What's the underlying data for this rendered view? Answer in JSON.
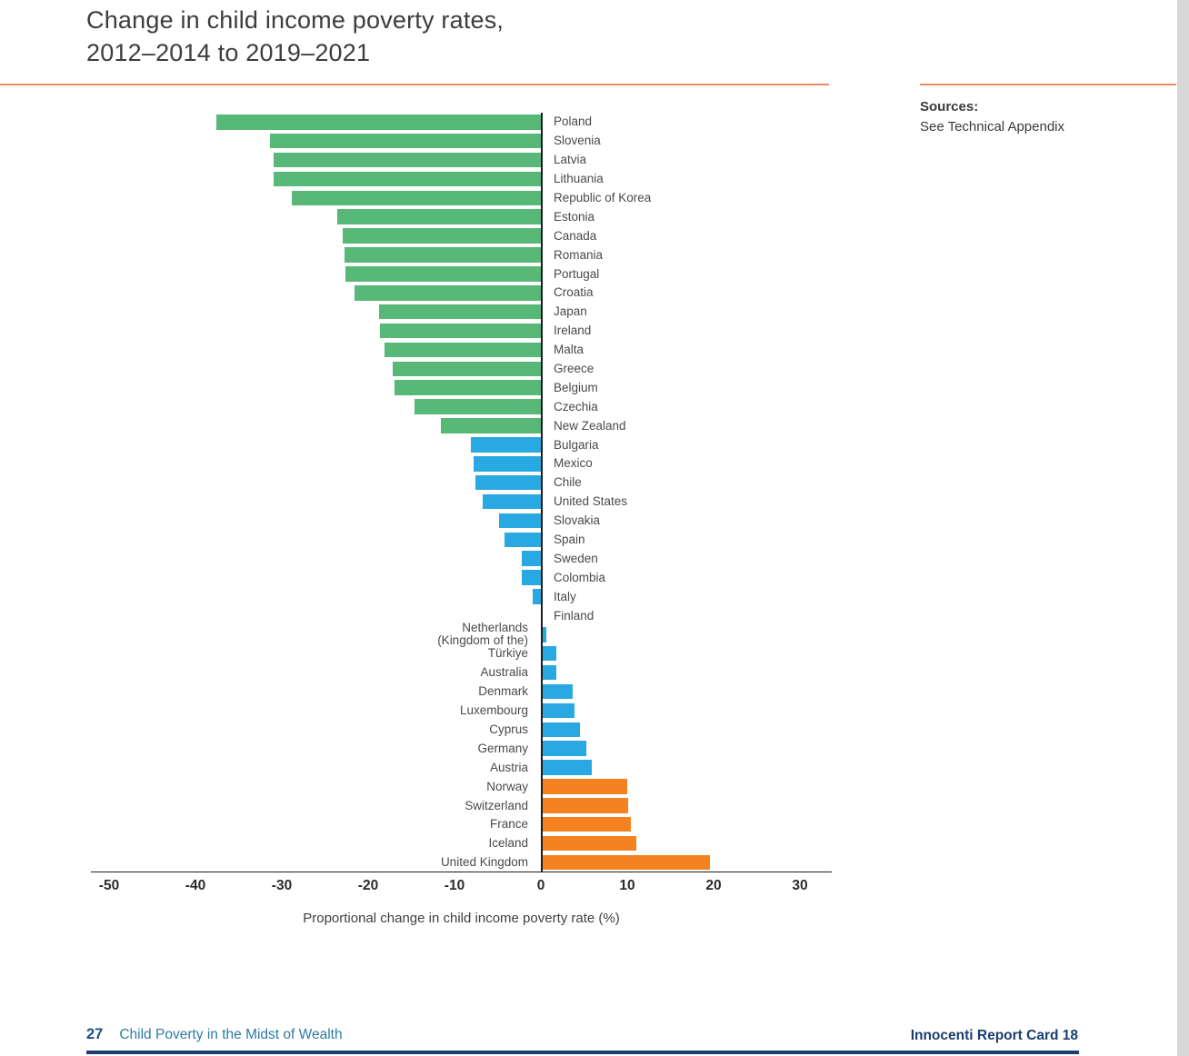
{
  "page": {
    "sources_heading": "Sources:",
    "sources_text": "See Technical Appendix",
    "footer_page_number": "27",
    "footer_left_title": "Child Poverty in the Midst of Wealth",
    "footer_right_title": "Innocenti Report Card 18"
  },
  "chart_data": {
    "type": "bar",
    "orientation": "horizontal",
    "title_lines": [
      "Change in child income poverty rates,",
      "2012–2014 to 2019–2021"
    ],
    "xlabel": "Proportional change in child income poverty rate (%)",
    "xlim": [
      -50,
      30
    ],
    "xticks": [
      -50,
      -40,
      -30,
      -20,
      -10,
      0,
      10,
      20,
      30
    ],
    "grid": false,
    "colors": {
      "green": "#57b878",
      "blue": "#29a9e1",
      "orange": "#f58220"
    },
    "countries": [
      {
        "label": "Poland",
        "value": -37.6,
        "color": "green"
      },
      {
        "label": "Slovenia",
        "value": -31.4,
        "color": "green"
      },
      {
        "label": "Latvia",
        "value": -31.0,
        "color": "green"
      },
      {
        "label": "Lithuania",
        "value": -30.9,
        "color": "green"
      },
      {
        "label": "Republic of Korea",
        "value": -28.8,
        "color": "green"
      },
      {
        "label": "Estonia",
        "value": -23.6,
        "color": "green"
      },
      {
        "label": "Canada",
        "value": -23.0,
        "color": "green"
      },
      {
        "label": "Romania",
        "value": -22.7,
        "color": "green"
      },
      {
        "label": "Portugal",
        "value": -22.6,
        "color": "green"
      },
      {
        "label": "Croatia",
        "value": -21.6,
        "color": "green"
      },
      {
        "label": "Japan",
        "value": -18.7,
        "color": "green"
      },
      {
        "label": "Ireland",
        "value": -18.6,
        "color": "green"
      },
      {
        "label": "Malta",
        "value": -18.1,
        "color": "green"
      },
      {
        "label": "Greece",
        "value": -17.2,
        "color": "green"
      },
      {
        "label": "Belgium",
        "value": -17.0,
        "color": "green"
      },
      {
        "label": "Czechia",
        "value": -14.6,
        "color": "green"
      },
      {
        "label": "New Zealand",
        "value": -11.6,
        "color": "green"
      },
      {
        "label": "Bulgaria",
        "value": -8.1,
        "color": "blue"
      },
      {
        "label": "Mexico",
        "value": -7.8,
        "color": "blue"
      },
      {
        "label": "Chile",
        "value": -7.6,
        "color": "blue"
      },
      {
        "label": "United States",
        "value": -6.7,
        "color": "blue"
      },
      {
        "label": "Slovakia",
        "value": -4.8,
        "color": "blue"
      },
      {
        "label": "Spain",
        "value": -4.2,
        "color": "blue"
      },
      {
        "label": "Sweden",
        "value": -2.2,
        "color": "blue"
      },
      {
        "label": "Colombia",
        "value": -2.2,
        "color": "blue"
      },
      {
        "label": "Italy",
        "value": -1.0,
        "color": "blue"
      },
      {
        "label": "Finland",
        "value": 0.0,
        "color": "blue"
      },
      {
        "label": [
          "Netherlands",
          "(Kingdom of the)"
        ],
        "value": 0.6,
        "color": "blue"
      },
      {
        "label": "Türkiye",
        "value": 1.8,
        "color": "blue"
      },
      {
        "label": "Australia",
        "value": 1.8,
        "color": "blue"
      },
      {
        "label": "Denmark",
        "value": 3.7,
        "color": "blue"
      },
      {
        "label": "Luxembourg",
        "value": 3.9,
        "color": "blue"
      },
      {
        "label": "Cyprus",
        "value": 4.5,
        "color": "blue"
      },
      {
        "label": "Germany",
        "value": 5.3,
        "color": "blue"
      },
      {
        "label": "Austria",
        "value": 5.9,
        "color": "blue"
      },
      {
        "label": "Norway",
        "value": 10.0,
        "color": "orange"
      },
      {
        "label": "Switzerland",
        "value": 10.1,
        "color": "orange"
      },
      {
        "label": "France",
        "value": 10.4,
        "color": "orange"
      },
      {
        "label": "Iceland",
        "value": 11.0,
        "color": "orange"
      },
      {
        "label": "United Kingdom",
        "value": 19.6,
        "color": "orange"
      }
    ]
  }
}
